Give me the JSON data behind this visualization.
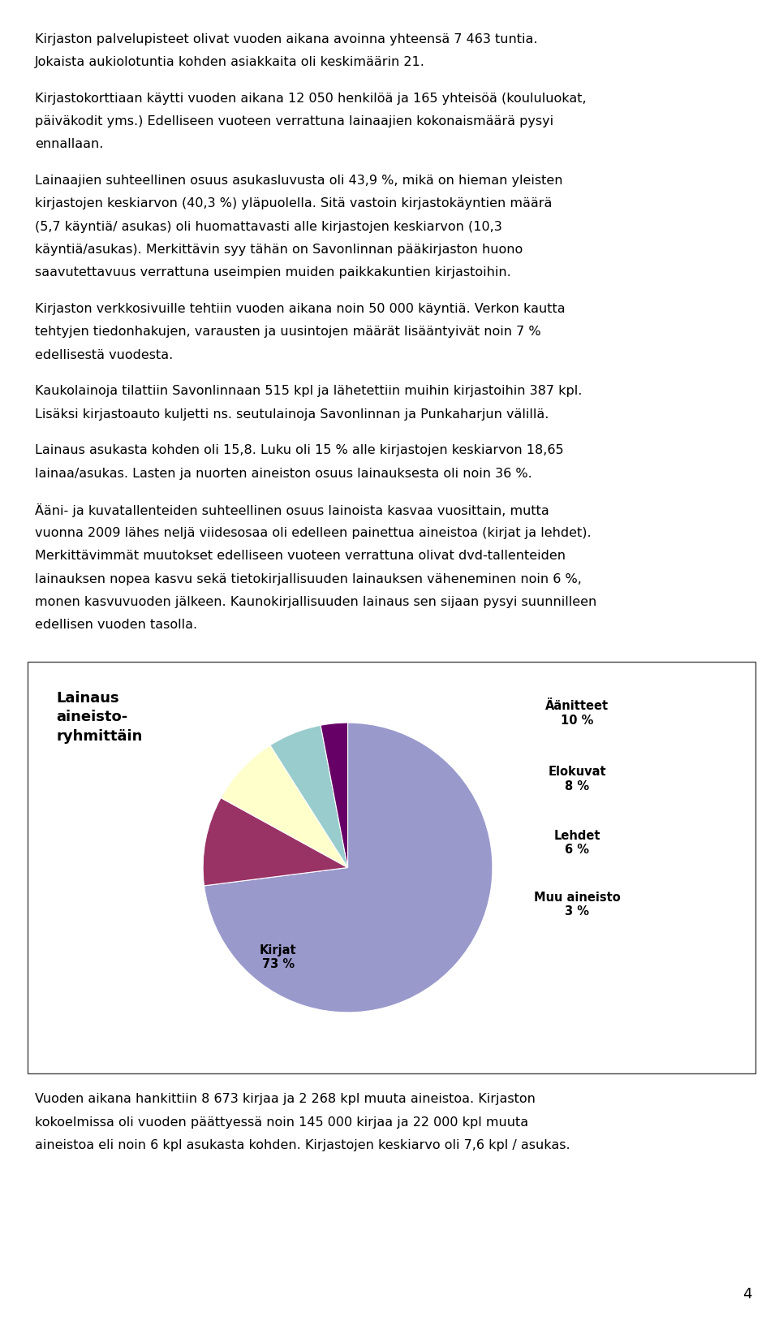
{
  "paragraphs": [
    "Kirjaston palvelupisteet olivat vuoden aikana avoinna yhteensä 7 463 tuntia.\nJokaista aukiolotuntia kohden asiakkaita oli keskimäärin 21.",
    "Kirjastokorttiaan käytti vuoden aikana 12 050 henkilöä ja 165 yhteisöä (koululuokat,\npäiväkodit yms.) Edelliseen vuoteen verrattuna lainaajien kokonaismäärä pysyi\nennallaan.",
    "Lainaajien suhteellinen osuus asukasluvusta oli 43,9 %, mikä on hieman yleisten\nkirjastojen keskiarvon (40,3 %) yläpuolella. Sitä vastoin kirjastokäyntien määrä\n(5,7 käyntiä/ asukas) oli huomattavasti alle kirjastojen keskiarvon (10,3\nkäyntiä/asukas). Merkittävin syy tähän on Savonlinnan pääkirjaston huono\nsaavutettavuus verrattuna useimpien muiden paikkakuntien kirjastoihin.",
    "Kirjaston verkkosivuille tehtiin vuoden aikana noin 50 000 käyntiä. Verkon kautta\ntehtyjen tiedonhakujen, varausten ja uusintojen määrät lisääntyivät noin 7 %\nedellisestä vuodesta.",
    "Kaukolainoja tilattiin Savonlinnaan 515 kpl ja lähetettiin muihin kirjastoihin 387 kpl.\nLisäksi kirjastoauto kuljetti ns. seutulainoja Savonlinnan ja Punkaharjun välillä.",
    "Lainaus asukasta kohden oli 15,8. Luku oli 15 % alle kirjastojen keskiarvon 18,65\nlainaa/asukas. Lasten ja nuorten aineiston osuus lainauksesta oli noin 36 %.",
    "Ääni- ja kuvatallenteiden suhteellinen osuus lainoista kasvaa vuosittain, mutta\nvuonna 2009 lähes neljä viidesosaa oli edelleen painettua aineistoa (kirjat ja lehdet).\nMerkittävimmät muutokset edelliseen vuoteen verrattuna olivat dvd-tallenteiden\nlainauksen nopea kasvu sekä tietokirjallisuuden lainauksen väheneminen noin 6 %,\nmonen kasvuvuoden jälkeen. Kaunokirjallisuuden lainaus sen sijaan pysyi suunnilleen\nedellisen vuoden tasolla."
  ],
  "footer_paragraphs": [
    "Vuoden aikana hankittiin 8 673 kirjaa ja 2 268 kpl muuta aineistoa. Kirjaston\nkokoelmissa oli vuoden päättyessä noin 145 000 kirjaa ja 22 000 kpl muuta\naineistoa eli noin 6 kpl asukasta kohden. Kirjastojen keskiarvo oli 7,6 kpl / asukas."
  ],
  "page_number": "4",
  "pie_title": "Lainaus\naineisto-\nryhmittäin",
  "pie_slices": [
    {
      "label": "Kirjat\n73 %",
      "value": 73,
      "color": "#9999cc"
    },
    {
      "label": "Äänitteet\n10 %",
      "value": 10,
      "color": "#993366"
    },
    {
      "label": "Elokuvat\n8 %",
      "value": 8,
      "color": "#ffffcc"
    },
    {
      "label": "Lehdet\n6 %",
      "value": 6,
      "color": "#99cccc"
    },
    {
      "label": "Muu aineisto\n3 %",
      "value": 3,
      "color": "#660066"
    }
  ],
  "background_color": "#ffffff",
  "text_color": "#000000",
  "font_size": 11.5,
  "label_font_size": 10.5,
  "pie_title_font_size": 13
}
